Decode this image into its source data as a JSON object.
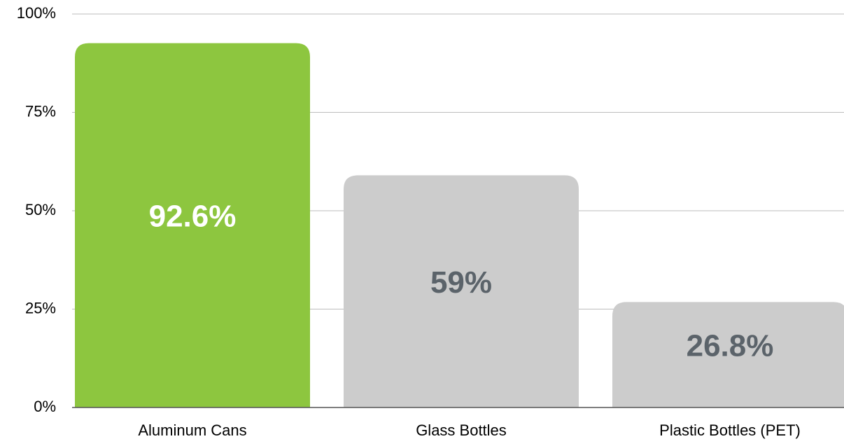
{
  "chart_data": {
    "type": "bar",
    "categories": [
      "Aluminum Cans",
      "Glass Bottles",
      "Plastic Bottles (PET)"
    ],
    "values": [
      92.6,
      59,
      26.8
    ],
    "value_labels": [
      "92.6%",
      "59%",
      "26.8%"
    ],
    "colors": [
      "#8dc63f",
      "#cccccc",
      "#cccccc"
    ],
    "value_label_colors": [
      "#ffffff",
      "#5b636a",
      "#5b636a"
    ],
    "ylim": [
      0,
      100
    ],
    "yticks": [
      {
        "value": 0,
        "label": "0%"
      },
      {
        "value": 25,
        "label": "25%"
      },
      {
        "value": 50,
        "label": "50%"
      },
      {
        "value": 75,
        "label": "75%"
      },
      {
        "value": 100,
        "label": "100%"
      }
    ],
    "grid": true
  }
}
